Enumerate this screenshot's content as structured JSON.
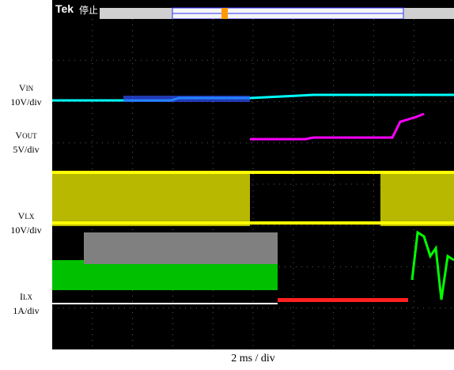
{
  "scope": {
    "brand": "Tek",
    "state": "停止",
    "time_scale": "2 ms / div",
    "colors": {
      "screen": "#000000",
      "ch1": "#ffff00",
      "ch2": "#00ffff",
      "ch3": "#ff00ff",
      "ch4": "#00ff00",
      "trigger_marker": "#ff9900",
      "cursor": "#ff2020"
    }
  },
  "chart_data": {
    "type": "line",
    "title": "",
    "xlabel": "2 ms / div",
    "series": [
      {
        "name": "VIN",
        "label_main": "V",
        "label_sub": "IN",
        "scale": "10V/div",
        "color": "#00ffff",
        "note": "rises from ~0 to a plateau after the first third of the sweep"
      },
      {
        "name": "VOUT",
        "label_main": "V",
        "label_sub": "OUT",
        "scale": "5V/div",
        "color": "#ff00ff",
        "note": "soft-start ramp beginning near the middle of the sweep"
      },
      {
        "name": "VLX",
        "label_main": "V",
        "label_sub": "LX",
        "scale": "10V/div",
        "color": "#ffff00",
        "note": "switching band, gap in the middle of the sweep"
      },
      {
        "name": "ILX",
        "label_main": "I",
        "label_sub": "LX",
        "scale": "1A/div",
        "color": "#00ff00",
        "note": "dense band then a transient near the right edge"
      }
    ]
  }
}
